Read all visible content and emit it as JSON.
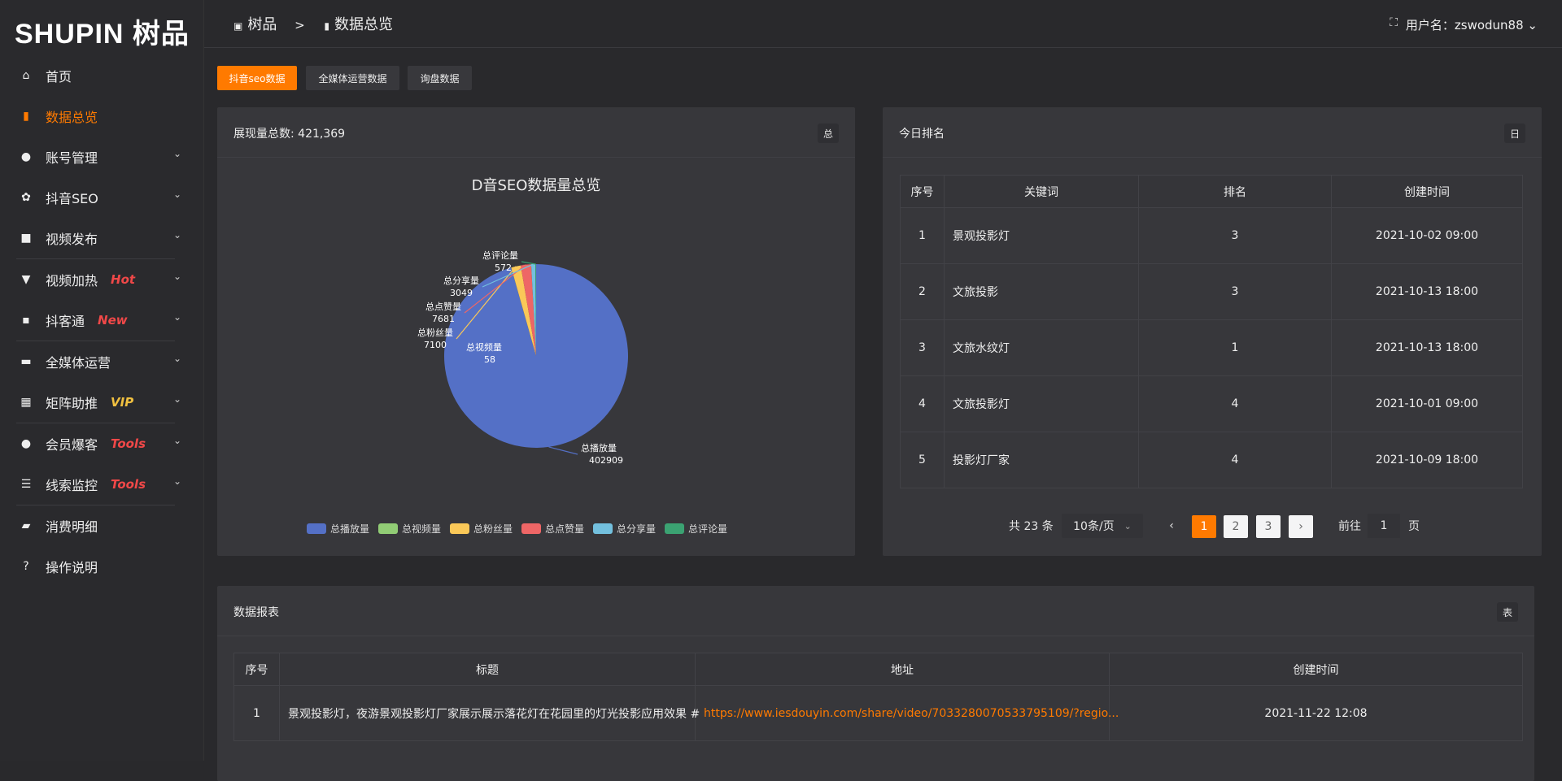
{
  "logo": "SHUPIN 树品",
  "sidebar": {
    "items": [
      {
        "label": "首页",
        "icon": "home-icon",
        "glyph": "⌂"
      },
      {
        "label": "数据总览",
        "icon": "bar-chart-icon",
        "glyph": "▮",
        "active": true
      },
      {
        "label": "账号管理",
        "icon": "user-icon",
        "glyph": "●",
        "chev": true
      },
      {
        "label": "抖音SEO",
        "icon": "gear-icon",
        "glyph": "✿",
        "chev": true
      },
      {
        "label": "视频发布",
        "icon": "camera-icon",
        "glyph": "■",
        "chev": true
      },
      {
        "label": "视频加热",
        "icon": "monitor-stand-icon",
        "glyph": "▼",
        "chev": true,
        "badge": "Hot",
        "badge_color": "#f04848"
      },
      {
        "label": "抖客通",
        "icon": "chat-icon",
        "glyph": "▪",
        "chev": true,
        "badge": "New",
        "badge_color": "#f04848"
      },
      {
        "label": "全媒体运营",
        "icon": "monitor-icon",
        "glyph": "▬",
        "chev": true
      },
      {
        "label": "矩阵助推",
        "icon": "grid-icon",
        "glyph": "▦",
        "chev": true,
        "badge": "VIP",
        "badge_color": "#f0c040"
      },
      {
        "label": "会员爆客",
        "icon": "user-icon",
        "glyph": "●",
        "chev": true,
        "badge": "Tools",
        "badge_color": "#f04848"
      },
      {
        "label": "线索监控",
        "icon": "sliders-icon",
        "glyph": "☰",
        "chev": true,
        "badge": "Tools",
        "badge_color": "#f04848"
      },
      {
        "label": "消费明细",
        "icon": "wallet-icon",
        "glyph": "▰"
      },
      {
        "label": "操作说明",
        "icon": "help-icon",
        "glyph": "?"
      }
    ]
  },
  "header": {
    "crumb_home": "树品",
    "crumb_sep": ">",
    "crumb_current": "数据总览",
    "username": "用户名：zswodun88"
  },
  "tabs": [
    "抖音seo数据",
    "全媒体运营数据",
    "询盘数据"
  ],
  "pie_card": {
    "title": "展现量总数: 421,369",
    "button": "总"
  },
  "chart_data": {
    "type": "pie",
    "title": "D音SEO数据量总览",
    "labels": [
      "总播放量",
      "总视频量",
      "总粉丝量",
      "总点赞量",
      "总分享量",
      "总评论量"
    ],
    "values": [
      402909,
      58,
      7100,
      7681,
      3049,
      572
    ],
    "colors": [
      "#5470c6",
      "#91cc75",
      "#fac858",
      "#ee6666",
      "#73c0de",
      "#3ba272"
    ],
    "legend": "bottom"
  },
  "rank_card": {
    "title": "今日排名",
    "button": "日",
    "columns": [
      "序号",
      "关键词",
      "排名",
      "创建时间"
    ],
    "rows": [
      [
        "1",
        "景观投影灯",
        "3",
        "2021-10-02 09:00"
      ],
      [
        "2",
        "文旅投影",
        "3",
        "2021-10-13 18:00"
      ],
      [
        "3",
        "文旅水纹灯",
        "1",
        "2021-10-13 18:00"
      ],
      [
        "4",
        "文旅投影灯",
        "4",
        "2021-10-01 09:00"
      ],
      [
        "5",
        "投影灯厂家",
        "4",
        "2021-10-09 18:00"
      ]
    ],
    "pager": {
      "total": "共 23 条",
      "size": "10条/页",
      "pages": [
        "1",
        "2",
        "3"
      ],
      "goto": "前往",
      "goto_value": "1",
      "page_unit": "页"
    }
  },
  "data_card": {
    "title": "数据报表",
    "button": "表",
    "columns": [
      "序号",
      "标题",
      "地址",
      "创建时间"
    ],
    "rows": [
      [
        "1",
        "景观投影灯，夜游景观投影灯厂家展示展示落花灯在花园里的灯光投影应用效果 #",
        "https://www.iesdouyin.com/share/video/7033280070533795109/?regio...",
        "2021-11-22 12:08"
      ]
    ]
  }
}
